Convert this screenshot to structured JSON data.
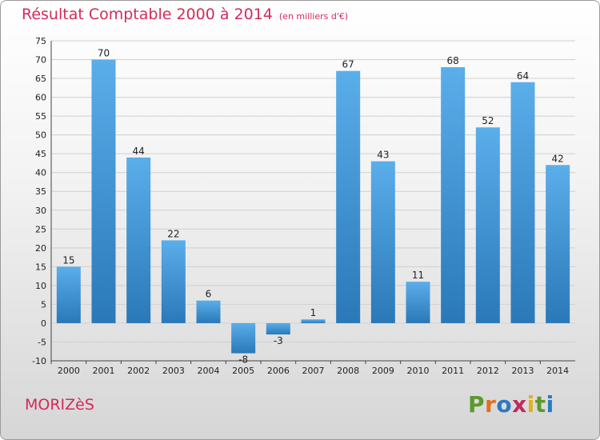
{
  "title": "Résultat Comptable 2000 à 2014",
  "unit_note": "(en milliers d'€)",
  "commune": "MORIZèS",
  "logo_text": "Proxiti",
  "logo_colors": [
    "#5a9a2a",
    "#e07020",
    "#2a7ac0",
    "#c02a60",
    "#e0b020",
    "#5a9a2a",
    "#2a7ac0"
  ],
  "colors": {
    "bar_top": "#5aaeea",
    "bar_bottom": "#2a78b8",
    "title": "#d42a5a"
  },
  "chart_data": {
    "type": "bar",
    "categories": [
      "2000",
      "2001",
      "2002",
      "2003",
      "2004",
      "2005",
      "2006",
      "2007",
      "2008",
      "2009",
      "2010",
      "2011",
      "2012",
      "2013",
      "2014"
    ],
    "values": [
      15,
      70,
      44,
      22,
      6,
      -8,
      -3,
      1,
      67,
      43,
      11,
      68,
      52,
      64,
      42
    ],
    "ylim": [
      -10,
      75
    ],
    "yticks": [
      -10,
      -5,
      0,
      5,
      10,
      15,
      20,
      25,
      30,
      35,
      40,
      45,
      50,
      55,
      60,
      65,
      70,
      75
    ],
    "grid": true,
    "xlabel": "",
    "ylabel": ""
  }
}
